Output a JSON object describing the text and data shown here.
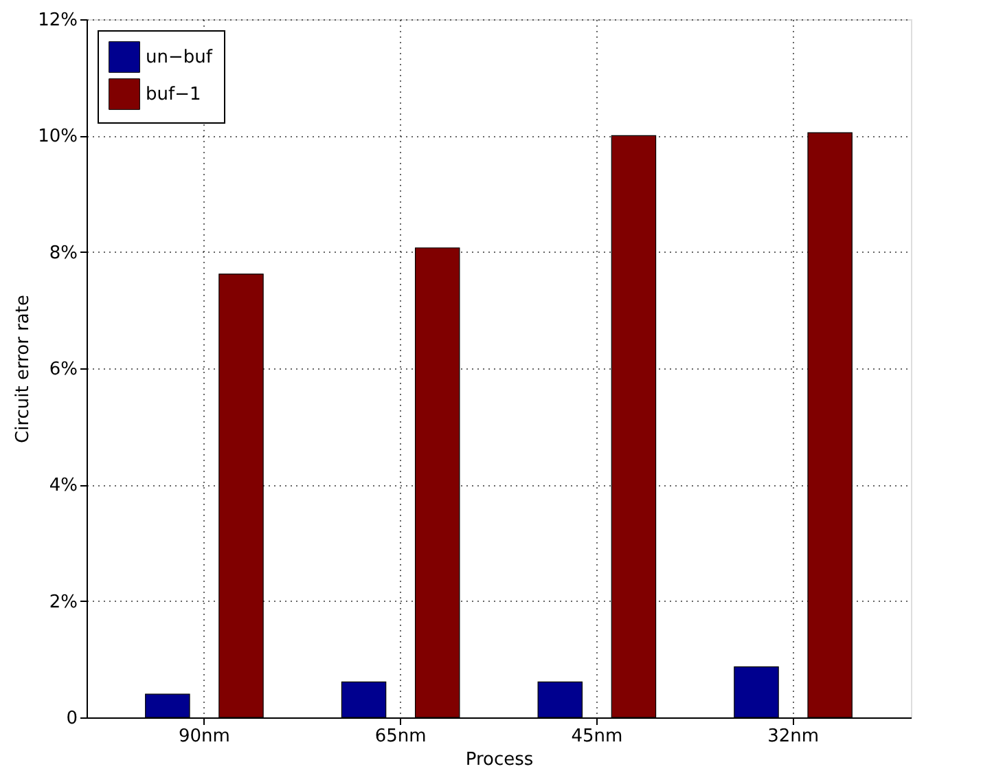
{
  "chart_data": {
    "type": "bar",
    "xlabel": "Process",
    "ylabel": "Circuit error rate",
    "categories": [
      "90nm",
      "65nm",
      "45nm",
      "32nm"
    ],
    "series": [
      {
        "name": "un−buf",
        "color": "#00008f",
        "values": [
          0.4,
          0.61,
          0.61,
          0.87
        ]
      },
      {
        "name": "buf−1",
        "color": "#800000",
        "values": [
          7.62,
          8.07,
          10.0,
          10.05
        ]
      }
    ],
    "ylim": [
      0,
      12
    ],
    "yticks": [
      0,
      {
        "value": 2,
        "label": "2%"
      },
      {
        "value": 4,
        "label": "4%"
      },
      {
        "value": 6,
        "label": "6%"
      },
      {
        "value": 8,
        "label": "8%"
      },
      {
        "value": 10,
        "label": "10%"
      },
      {
        "value": 12,
        "label": "12%"
      }
    ],
    "grid": true,
    "legend": "top left"
  }
}
